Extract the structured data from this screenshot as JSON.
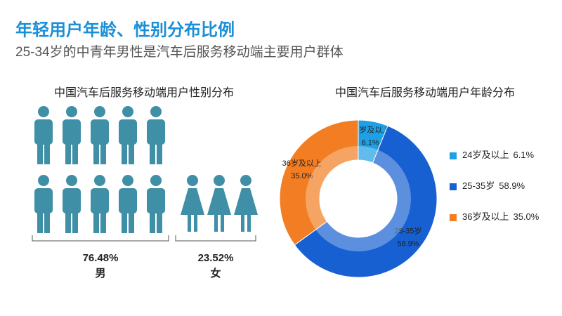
{
  "title": "年轻用户年龄、性别分布比例",
  "subtitle": "25-34岁的中青年男性是汽车后服务移动端主要用户群体",
  "chart_data": [
    {
      "type": "pictogram",
      "title": "中国汽车后服务移动端用户性别分布",
      "categories": [
        "男",
        "女"
      ],
      "values": [
        76.48,
        23.52
      ],
      "value_labels": [
        "76.48%",
        "23.52%"
      ],
      "color": "#3f8fa6",
      "empty_color": "#a9aaa8"
    },
    {
      "type": "donut",
      "title": "中国汽车后服务移动端用户年龄分布",
      "categories": [
        "24岁及以上",
        "25-35岁",
        "36岁及以上"
      ],
      "values": [
        6.1,
        58.9,
        35.0
      ],
      "value_labels": [
        "6.1%",
        "58.9%",
        "35.0%"
      ],
      "colors": [
        "#1ea0e6",
        "#1660d2",
        "#f27d22"
      ],
      "legend": "right"
    }
  ]
}
